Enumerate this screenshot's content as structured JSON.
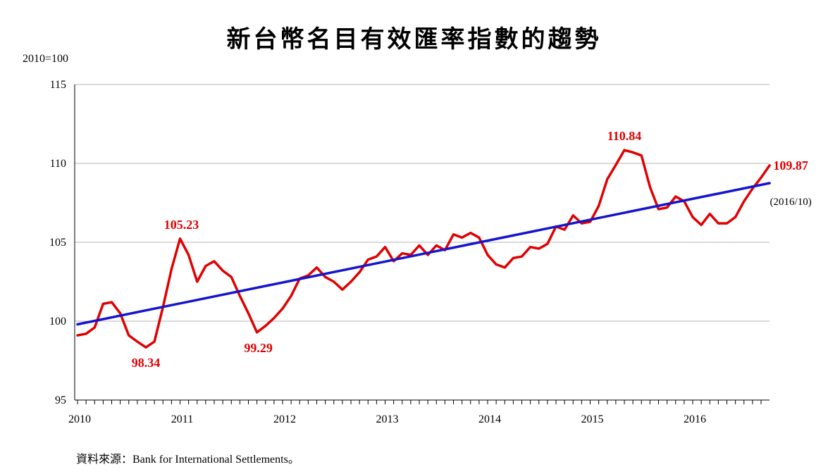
{
  "title": "新台幣名目有效匯率指數的趨勢",
  "unit_label": "2010=100",
  "source": "資料來源：Bank for International Settlements。",
  "colors": {
    "series": "#e00000",
    "trend": "#1515cc",
    "grid": "#b5b5b5",
    "axis": "#000000"
  },
  "chart_data": {
    "type": "line",
    "title": "新台幣名目有效匯率指數的趨勢",
    "ylabel": "2010=100",
    "xlabel": "",
    "ylim": [
      95,
      115
    ],
    "y_ticks": [
      95,
      100,
      105,
      110,
      115
    ],
    "x_ticks": [
      "2010",
      "2011",
      "2012",
      "2013",
      "2014",
      "2015",
      "2016"
    ],
    "x_range_months": [
      0,
      82
    ],
    "grid": true,
    "series": [
      {
        "type": "line",
        "color": "#e00000",
        "x_months": [
          0,
          1,
          2,
          3,
          4,
          5,
          6,
          7,
          8,
          9,
          10,
          11,
          12,
          13,
          14,
          15,
          16,
          17,
          18,
          19,
          20,
          21,
          22,
          23,
          24,
          25,
          26,
          27,
          28,
          29,
          30,
          31,
          32,
          33,
          34,
          35,
          36,
          37,
          38,
          39,
          40,
          41,
          42,
          43,
          44,
          45,
          46,
          47,
          48,
          49,
          50,
          51,
          52,
          53,
          54,
          55,
          56,
          57,
          58,
          59,
          60,
          61,
          62,
          63,
          64,
          65,
          66,
          67,
          68,
          69,
          70,
          71,
          72,
          73,
          74,
          75,
          76,
          77,
          78,
          79,
          80,
          81
        ],
        "values": [
          99.1,
          99.2,
          99.6,
          101.1,
          101.2,
          100.5,
          99.1,
          98.7,
          98.34,
          98.7,
          100.9,
          103.3,
          105.23,
          104.2,
          102.5,
          103.5,
          103.8,
          103.2,
          102.8,
          101.6,
          100.5,
          99.29,
          99.7,
          100.2,
          100.8,
          101.6,
          102.7,
          102.9,
          103.4,
          102.8,
          102.5,
          102.0,
          102.5,
          103.1,
          103.9,
          104.1,
          104.7,
          103.8,
          104.3,
          104.2,
          104.8,
          104.2,
          104.8,
          104.5,
          105.5,
          105.3,
          105.6,
          105.3,
          104.2,
          103.6,
          103.4,
          104.0,
          104.1,
          104.7,
          104.6,
          104.9,
          106.0,
          105.8,
          106.7,
          106.2,
          106.3,
          107.3,
          109.0,
          109.9,
          110.84,
          110.7,
          110.5,
          108.5,
          107.1,
          107.2,
          107.9,
          107.6,
          106.6,
          106.1,
          106.8,
          106.2,
          106.2,
          106.6,
          107.6,
          108.4,
          109.1,
          109.87
        ]
      },
      {
        "type": "trend",
        "color": "#1515cc",
        "x_months": [
          0,
          81
        ],
        "values": [
          99.8,
          108.75
        ]
      }
    ],
    "annotations": [
      {
        "label": "98.34",
        "x_month": 8,
        "value": 98.34
      },
      {
        "label": "105.23",
        "x_month": 12,
        "value": 105.23
      },
      {
        "label": "99.29",
        "x_month": 21,
        "value": 99.29
      },
      {
        "label": "110.84",
        "x_month": 64,
        "value": 110.84
      },
      {
        "label": "109.87",
        "x_month": 81,
        "value": 109.87
      }
    ],
    "note": "(2016/10)"
  }
}
